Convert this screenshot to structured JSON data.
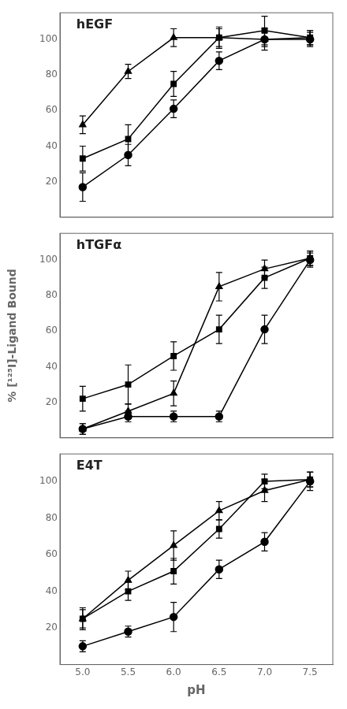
{
  "chart_data": [
    {
      "type": "line",
      "title": "hEGF",
      "x": [
        5.0,
        5.5,
        6.0,
        6.5,
        7.0,
        7.5
      ],
      "series": [
        {
          "color": "#000000",
          "marker": "triangle",
          "values": [
            52,
            82,
            101,
            101,
            100,
            101
          ],
          "yerr": [
            5,
            4,
            5,
            5,
            6,
            4
          ]
        },
        {
          "color": "#000000",
          "marker": "square",
          "values": [
            33,
            44,
            75,
            101,
            105,
            101
          ],
          "yerr": [
            7,
            8,
            7,
            6,
            8,
            4
          ]
        },
        {
          "color": "#000000",
          "marker": "circle",
          "values": [
            17,
            35,
            61,
            88,
            100,
            100
          ],
          "yerr": [
            8,
            6,
            5,
            5,
            4,
            4
          ]
        }
      ],
      "xlim": [
        4.75,
        7.75
      ],
      "xticks": [
        {
          "value": 5.0,
          "label": "5.0"
        },
        5.5,
        {
          "value": 6.0,
          "label": "6.0"
        },
        6.5,
        {
          "value": 7.0,
          "label": "7.0"
        },
        7.5
      ],
      "ylim": [
        0,
        115
      ],
      "yticks": [
        20,
        40,
        60,
        80,
        100
      ],
      "grid": false,
      "tick_labels": "y"
    },
    {
      "type": "line",
      "title": "hTGFα",
      "ylabel": "% [¹²⁵I]-Ligand Bound",
      "x": [
        5.0,
        5.5,
        6.0,
        6.5,
        7.0,
        7.5
      ],
      "series": [
        {
          "color": "#000000",
          "marker": "triangle",
          "values": [
            5,
            15,
            25,
            85,
            95,
            101
          ],
          "yerr": [
            3,
            4,
            7,
            8,
            5,
            4
          ]
        },
        {
          "color": "#000000",
          "marker": "square",
          "values": [
            22,
            30,
            46,
            61,
            90,
            101
          ],
          "yerr": [
            7,
            11,
            8,
            8,
            6,
            4
          ]
        },
        {
          "color": "#000000",
          "marker": "circle",
          "values": [
            5,
            12,
            12,
            12,
            61,
            100
          ],
          "yerr": [
            3,
            3,
            3,
            3,
            8,
            4
          ]
        }
      ],
      "xlim": [
        4.75,
        7.75
      ],
      "xticks": [
        {
          "value": 5.0,
          "label": "5.0"
        },
        5.5,
        {
          "value": 6.0,
          "label": "6.0"
        },
        6.5,
        {
          "value": 7.0,
          "label": "7.0"
        },
        7.5
      ],
      "ylim": [
        0,
        115
      ],
      "yticks": [
        20,
        40,
        60,
        80,
        100
      ],
      "grid": false,
      "tick_labels": "y"
    },
    {
      "type": "line",
      "title": "E4T",
      "xlabel": "pH",
      "x": [
        5.0,
        5.5,
        6.0,
        6.5,
        7.0,
        7.5
      ],
      "series": [
        {
          "color": "#000000",
          "marker": "triangle",
          "values": [
            25,
            46,
            65,
            84,
            95,
            101
          ],
          "yerr": [
            5,
            5,
            8,
            5,
            6,
            4
          ]
        },
        {
          "color": "#000000",
          "marker": "square",
          "values": [
            25,
            40,
            51,
            74,
            100,
            101
          ],
          "yerr": [
            6,
            5,
            7,
            5,
            4,
            4
          ]
        },
        {
          "color": "#000000",
          "marker": "circle",
          "values": [
            10,
            18,
            26,
            52,
            67,
            100
          ],
          "yerr": [
            3,
            3,
            8,
            5,
            5,
            5
          ]
        }
      ],
      "xlim": [
        4.75,
        7.75
      ],
      "xticks": [
        {
          "value": 5.0,
          "label": "5.0"
        },
        5.5,
        {
          "value": 6.0,
          "label": "6.0"
        },
        6.5,
        {
          "value": 7.0,
          "label": "7.0"
        },
        7.5
      ],
      "ylim": [
        0,
        115
      ],
      "yticks": [
        20,
        40,
        60,
        80,
        100
      ],
      "grid": false
    }
  ]
}
